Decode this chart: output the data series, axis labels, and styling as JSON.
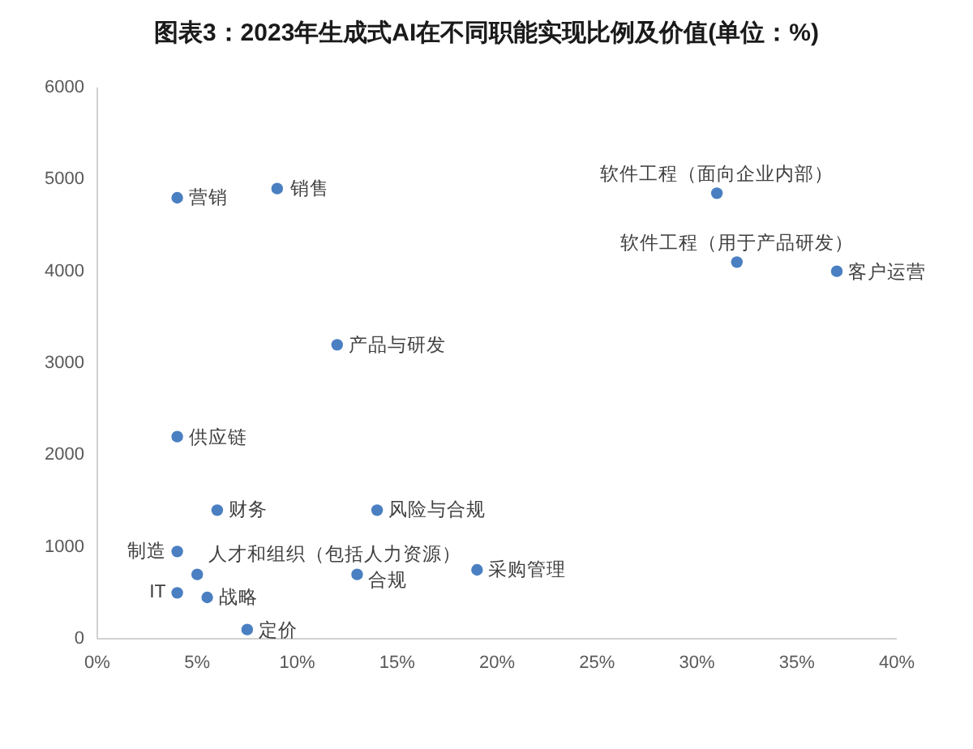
{
  "chart_data": {
    "type": "scatter",
    "title": "图表3：2023年生成式AI在不同职能实现比例及价值(单位：%)",
    "x": [
      31,
      32,
      37,
      4,
      9,
      12,
      4,
      6,
      14,
      5,
      13,
      19,
      5.5,
      7.5,
      4,
      4
    ],
    "series": [
      {
        "color": "#4a7fc1",
        "values": [
          4850,
          4100,
          4000,
          4800,
          4900,
          3200,
          2200,
          1400,
          1400,
          700,
          700,
          750,
          450,
          100,
          950,
          500
        ]
      }
    ],
    "marker": "circle",
    "xlim": [
      0,
      40
    ],
    "xticks": [
      {
        "value": 0,
        "label": "0%"
      },
      {
        "value": 5,
        "label": "5%"
      },
      {
        "value": 10,
        "label": "10%"
      },
      {
        "value": 15,
        "label": "15%"
      },
      {
        "value": 20,
        "label": "20%"
      },
      {
        "value": 25,
        "label": "25%"
      },
      {
        "value": 30,
        "label": "30%"
      },
      {
        "value": 35,
        "label": "35%"
      },
      {
        "value": 40,
        "label": "40%"
      }
    ],
    "ylim": [
      0,
      6000
    ],
    "yticks": [
      0,
      1000,
      2000,
      3000,
      4000,
      5000,
      6000
    ],
    "annotations": [
      {
        "text": "软件工程（面向企业内部）",
        "x": 31,
        "y": 4850
      },
      {
        "text": "软件工程（用于产品研发）",
        "x": 32,
        "y": 4100
      },
      {
        "text": "客户运营",
        "x": 37,
        "y": 4000
      },
      {
        "text": "营销",
        "x": 4,
        "y": 4800
      },
      {
        "text": "销售",
        "x": 9,
        "y": 4900
      },
      {
        "text": "产品与研发",
        "x": 12,
        "y": 3200
      },
      {
        "text": "供应链",
        "x": 4,
        "y": 2200
      },
      {
        "text": "财务",
        "x": 6,
        "y": 1400
      },
      {
        "text": "风险与合规",
        "x": 14,
        "y": 1400
      },
      {
        "text": "人才和组织（包括人力资源）",
        "x": 5,
        "y": 700
      },
      {
        "text": "合规",
        "x": 13,
        "y": 700
      },
      {
        "text": "采购管理",
        "x": 19,
        "y": 750
      },
      {
        "text": "战略",
        "x": 5.5,
        "y": 450
      },
      {
        "text": "定价",
        "x": 7.5,
        "y": 100
      },
      {
        "text": "制造",
        "x": 4,
        "y": 950
      },
      {
        "text": "IT",
        "x": 4,
        "y": 500
      }
    ]
  }
}
